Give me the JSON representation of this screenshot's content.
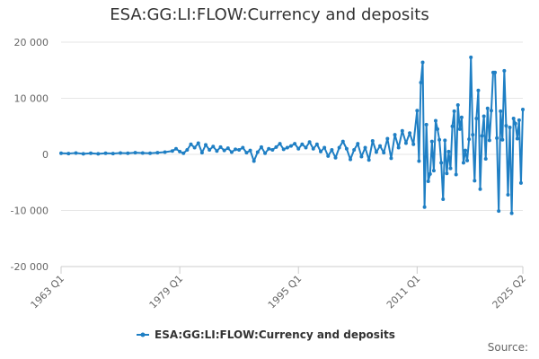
{
  "chart_data": {
    "type": "line",
    "title": "ESA:GG:LI:FLOW:Currency and deposits",
    "source_label": "Source:",
    "xlabel": "",
    "ylabel": "",
    "ylim": [
      -20000,
      20000
    ],
    "y_ticks": [
      -20000,
      -10000,
      0,
      10000,
      20000
    ],
    "y_tick_labels": [
      "-20 000",
      "-10 000",
      "0",
      "10 000",
      "20 000"
    ],
    "x_tick_labels": [
      "1963 Q1",
      "1979 Q1",
      "1995 Q1",
      "2011 Q1",
      "2025 Q2"
    ],
    "x_tick_positions": [
      1963.0,
      1979.0,
      1995.0,
      2011.0,
      2025.25
    ],
    "xlim": [
      1963.0,
      2025.25
    ],
    "grid": true,
    "legend_position": "bottom-center",
    "colors": {
      "series": "#1f7fc4",
      "grid": "#e6e6e6",
      "axis": "#cccccc"
    },
    "series": [
      {
        "name": "ESA:GG:LI:FLOW:Currency and deposits",
        "points": [
          [
            1963.0,
            200
          ],
          [
            1964.0,
            150
          ],
          [
            1965.0,
            250
          ],
          [
            1966.0,
            100
          ],
          [
            1967.0,
            200
          ],
          [
            1968.0,
            100
          ],
          [
            1969.0,
            200
          ],
          [
            1970.0,
            150
          ],
          [
            1971.0,
            250
          ],
          [
            1972.0,
            200
          ],
          [
            1973.0,
            300
          ],
          [
            1974.0,
            250
          ],
          [
            1975.0,
            200
          ],
          [
            1976.0,
            300
          ],
          [
            1977.0,
            400
          ],
          [
            1978.0,
            600
          ],
          [
            1978.5,
            1000
          ],
          [
            1979.0,
            500
          ],
          [
            1979.5,
            200
          ],
          [
            1980.0,
            800
          ],
          [
            1980.5,
            1800
          ],
          [
            1981.0,
            1200
          ],
          [
            1981.5,
            2000
          ],
          [
            1982.0,
            300
          ],
          [
            1982.5,
            1700
          ],
          [
            1983.0,
            800
          ],
          [
            1983.5,
            1400
          ],
          [
            1984.0,
            600
          ],
          [
            1984.5,
            1300
          ],
          [
            1985.0,
            700
          ],
          [
            1985.5,
            1100
          ],
          [
            1986.0,
            400
          ],
          [
            1986.5,
            900
          ],
          [
            1987.0,
            800
          ],
          [
            1987.5,
            1200
          ],
          [
            1988.0,
            300
          ],
          [
            1988.5,
            700
          ],
          [
            1989.0,
            -1200
          ],
          [
            1989.5,
            400
          ],
          [
            1990.0,
            1300
          ],
          [
            1990.5,
            200
          ],
          [
            1991.0,
            1000
          ],
          [
            1991.5,
            800
          ],
          [
            1992.0,
            1300
          ],
          [
            1992.5,
            1900
          ],
          [
            1993.0,
            900
          ],
          [
            1993.5,
            1200
          ],
          [
            1994.0,
            1500
          ],
          [
            1994.5,
            1900
          ],
          [
            1995.0,
            1000
          ],
          [
            1995.5,
            1800
          ],
          [
            1996.0,
            1200
          ],
          [
            1996.5,
            2200
          ],
          [
            1997.0,
            1000
          ],
          [
            1997.5,
            1800
          ],
          [
            1998.0,
            500
          ],
          [
            1998.5,
            1200
          ],
          [
            1999.0,
            -300
          ],
          [
            1999.5,
            800
          ],
          [
            2000.0,
            -600
          ],
          [
            2000.5,
            1200
          ],
          [
            2001.0,
            2300
          ],
          [
            2001.5,
            1000
          ],
          [
            2002.0,
            -900
          ],
          [
            2002.5,
            800
          ],
          [
            2003.0,
            1900
          ],
          [
            2003.5,
            -400
          ],
          [
            2004.0,
            1200
          ],
          [
            2004.5,
            -1000
          ],
          [
            2005.0,
            2400
          ],
          [
            2005.5,
            400
          ],
          [
            2006.0,
            1500
          ],
          [
            2006.5,
            300
          ],
          [
            2007.0,
            2800
          ],
          [
            2007.5,
            -700
          ],
          [
            2008.0,
            3500
          ],
          [
            2008.5,
            1200
          ],
          [
            2009.0,
            4200
          ],
          [
            2009.5,
            2000
          ],
          [
            2010.0,
            3800
          ],
          [
            2010.5,
            1800
          ],
          [
            2011.0,
            7800
          ],
          [
            2011.25,
            -1200
          ],
          [
            2011.5,
            12800
          ],
          [
            2011.75,
            16400
          ],
          [
            2012.0,
            -9400
          ],
          [
            2012.25,
            5300
          ],
          [
            2012.5,
            -4800
          ],
          [
            2012.75,
            -3500
          ],
          [
            2013.0,
            2300
          ],
          [
            2013.25,
            -2900
          ],
          [
            2013.5,
            6000
          ],
          [
            2013.75,
            4500
          ],
          [
            2014.0,
            2600
          ],
          [
            2014.25,
            -1500
          ],
          [
            2014.5,
            -8000
          ],
          [
            2014.75,
            2500
          ],
          [
            2015.0,
            -3400
          ],
          [
            2015.25,
            500
          ],
          [
            2015.5,
            -2500
          ],
          [
            2015.75,
            5000
          ],
          [
            2016.0,
            7700
          ],
          [
            2016.25,
            -3600
          ],
          [
            2016.5,
            8800
          ],
          [
            2016.75,
            4500
          ],
          [
            2017.0,
            6600
          ],
          [
            2017.25,
            -1500
          ],
          [
            2017.5,
            700
          ],
          [
            2017.75,
            -1100
          ],
          [
            2018.0,
            2700
          ],
          [
            2018.25,
            17300
          ],
          [
            2018.5,
            3500
          ],
          [
            2018.75,
            -4700
          ],
          [
            2019.0,
            6400
          ],
          [
            2019.25,
            11400
          ],
          [
            2019.5,
            -6200
          ],
          [
            2019.75,
            3300
          ],
          [
            2020.0,
            6800
          ],
          [
            2020.25,
            -800
          ],
          [
            2020.5,
            8200
          ],
          [
            2020.75,
            2500
          ],
          [
            2021.0,
            7800
          ],
          [
            2021.25,
            14600
          ],
          [
            2021.5,
            14600
          ],
          [
            2021.75,
            2900
          ],
          [
            2022.0,
            -10100
          ],
          [
            2022.25,
            7700
          ],
          [
            2022.5,
            2600
          ],
          [
            2022.75,
            14900
          ],
          [
            2023.0,
            5100
          ],
          [
            2023.25,
            -7200
          ],
          [
            2023.5,
            4800
          ],
          [
            2023.75,
            -10500
          ],
          [
            2024.0,
            6400
          ],
          [
            2024.25,
            5500
          ],
          [
            2024.5,
            2800
          ],
          [
            2024.75,
            6100
          ],
          [
            2025.0,
            -5100
          ],
          [
            2025.25,
            8000
          ]
        ]
      }
    ]
  }
}
